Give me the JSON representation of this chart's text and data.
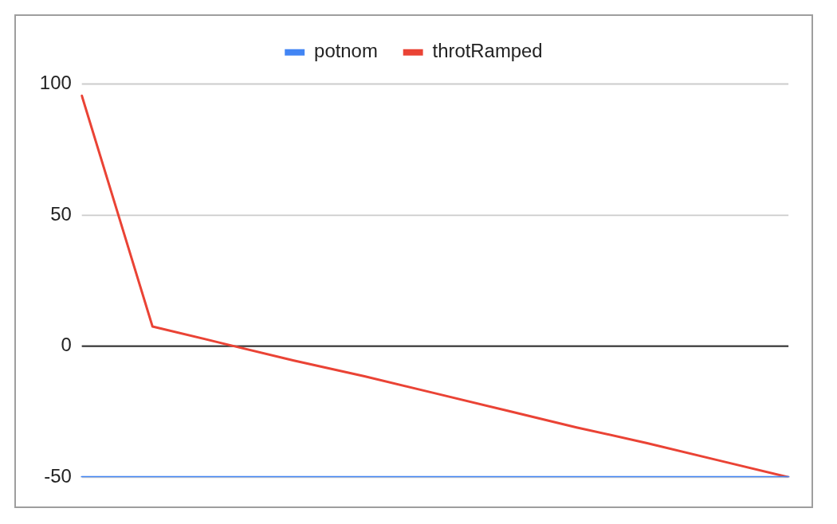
{
  "chart_data": {
    "type": "line",
    "categories": [
      null,
      null,
      null,
      null,
      null,
      null,
      null,
      null,
      null,
      null,
      null
    ],
    "series": [
      {
        "name": "potnom",
        "color": "#4285f4",
        "values": [
          -50,
          -50,
          -50,
          -50,
          -50,
          -50,
          -50,
          -50,
          -50,
          -50,
          -50
        ]
      },
      {
        "name": "throtRamped",
        "color": "#ea4335",
        "values": [
          95.5,
          7.5,
          1,
          -5.5,
          -11.5,
          -18,
          -24.5,
          -31,
          -37,
          -43.5,
          -50
        ]
      }
    ],
    "ylim": [
      -50,
      100
    ],
    "yticks": [
      -50,
      0,
      50,
      100
    ],
    "ref_lines": [
      {
        "axis": "y",
        "value": 0,
        "color": "#333333"
      }
    ],
    "grid": "y",
    "legend": "top",
    "tick_labels": "y",
    "marker": "none",
    "line_style": "solid"
  }
}
